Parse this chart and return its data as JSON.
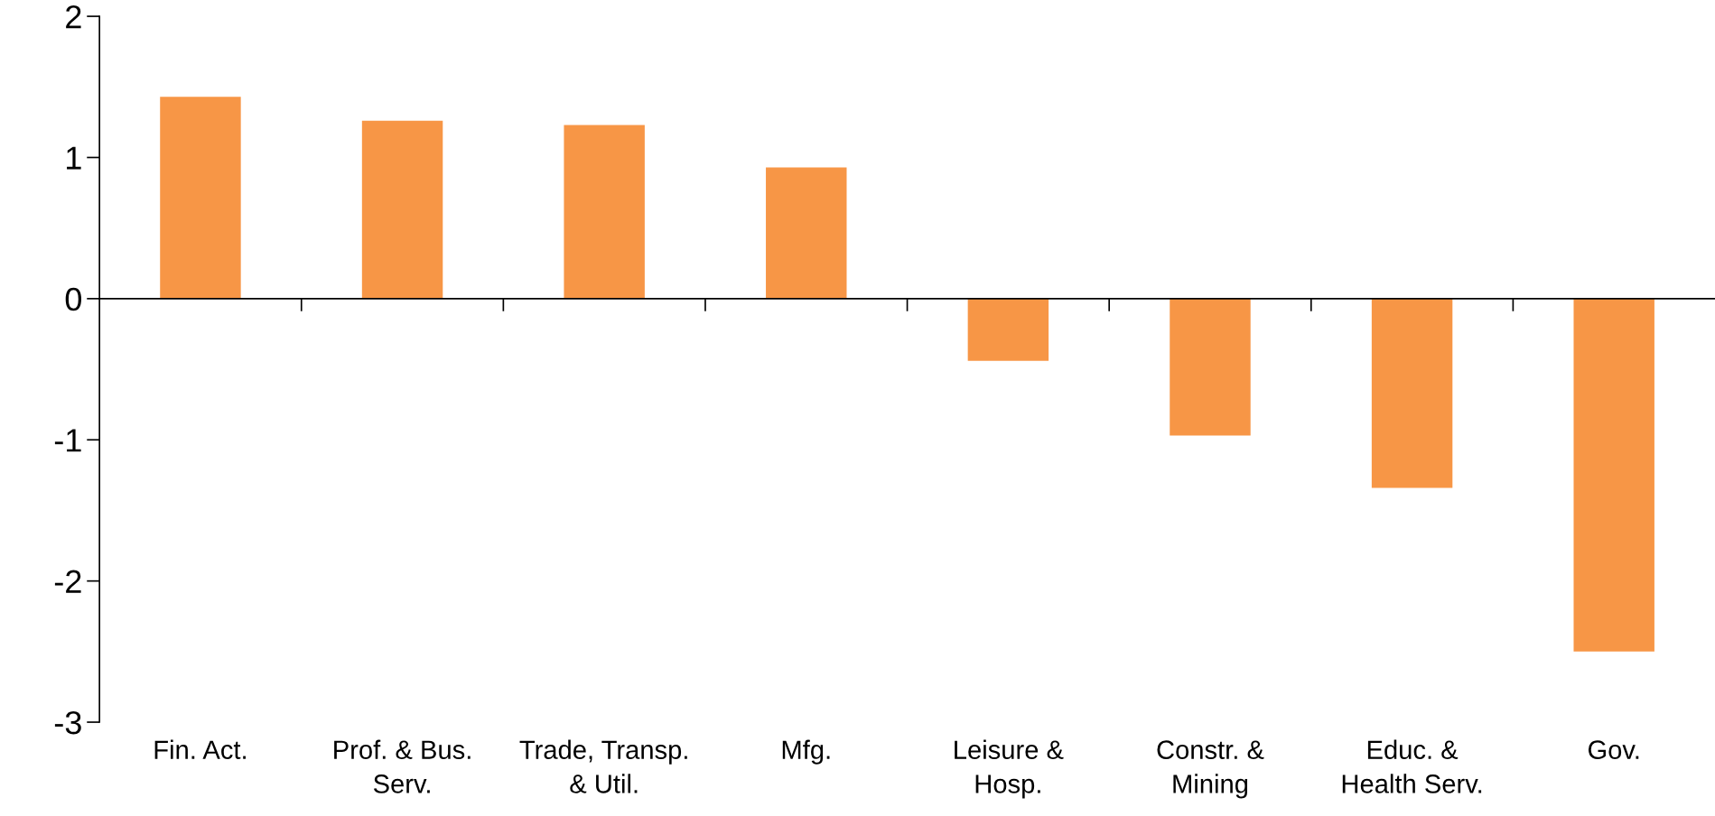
{
  "chart_data": {
    "type": "bar",
    "categories": [
      "Fin. Act.",
      "Prof. & Bus.\nServ.",
      "Trade, Transp.\n& Util.",
      "Mfg.",
      "Leisure &\nHosp.",
      "Constr. &\nMining",
      "Educ. &\nHealth Serv.",
      "Gov."
    ],
    "values": [
      1.43,
      1.26,
      1.23,
      0.93,
      -0.44,
      -0.97,
      -1.34,
      -2.5
    ],
    "color": "#f79646",
    "ylim": [
      -3,
      2
    ],
    "yticks": [
      -3,
      -2,
      -1,
      0,
      1,
      2
    ]
  }
}
